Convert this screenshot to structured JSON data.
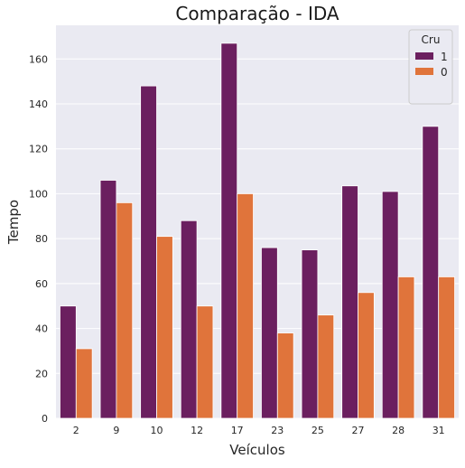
{
  "chart_data": {
    "type": "bar",
    "title": "Comparação - IDA",
    "xlabel": "Veículos",
    "ylabel": "Tempo",
    "categories": [
      "2",
      "9",
      "10",
      "12",
      "17",
      "23",
      "25",
      "27",
      "28",
      "31"
    ],
    "series": [
      {
        "name": "1",
        "color": "#6b1f5f",
        "values": [
          50,
          106,
          148,
          88,
          167,
          76,
          75,
          103.5,
          101,
          130
        ]
      },
      {
        "name": "0",
        "color": "#e0743b",
        "values": [
          31,
          96,
          81,
          50,
          100,
          38,
          46,
          56,
          63,
          63
        ]
      }
    ],
    "ylim": [
      0,
      175
    ],
    "yticks": [
      0,
      20,
      40,
      60,
      80,
      100,
      120,
      140,
      160
    ],
    "legend": {
      "title": "Cru",
      "position": "top-right"
    },
    "grid": true,
    "background": "#eaeaf2",
    "grid_color": "#ffffff"
  }
}
